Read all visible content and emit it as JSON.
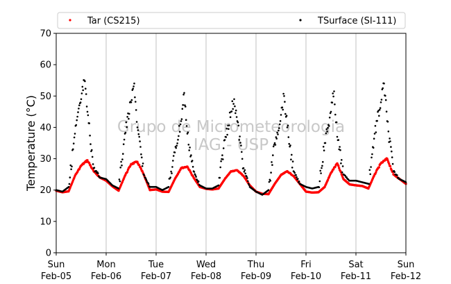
{
  "chart_data": {
    "type": "scatter",
    "title": "",
    "xlabel": "",
    "ylabel": "Temperature (°C)",
    "ylim": [
      0,
      70
    ],
    "yticks": [
      0,
      10,
      20,
      30,
      40,
      50,
      60,
      70
    ],
    "xlim": [
      "2023-02-05T00:00",
      "2023-02-12T00:00"
    ],
    "xticks": [
      {
        "day": "Sun",
        "date": "Feb-05"
      },
      {
        "day": "Mon",
        "date": "Feb-06"
      },
      {
        "day": "Tue",
        "date": "Feb-07"
      },
      {
        "day": "Wed",
        "date": "Feb-08"
      },
      {
        "day": "Thu",
        "date": "Feb-09"
      },
      {
        "day": "Fri",
        "date": "Feb-10"
      },
      {
        "day": "Sat",
        "date": "Feb-11"
      },
      {
        "day": "Sun",
        "date": "Feb-12"
      }
    ],
    "grid": "x",
    "legend_position": "top",
    "watermark": [
      "Grupo de Micrometeorologia",
      "IAG - USP"
    ],
    "series": [
      {
        "name": "Tar (CS215)",
        "color": "#ff0000",
        "points": [
          [
            "2023-02-05T00:00",
            19.8
          ],
          [
            "2023-02-05T03:00",
            19.3
          ],
          [
            "2023-02-05T06:00",
            19.6
          ],
          [
            "2023-02-05T09:00",
            24.5
          ],
          [
            "2023-02-05T12:00",
            27.8
          ],
          [
            "2023-02-05T15:00",
            29.5
          ],
          [
            "2023-02-05T18:00",
            26.0
          ],
          [
            "2023-02-05T21:00",
            24.0
          ],
          [
            "2023-02-06T00:00",
            23.0
          ],
          [
            "2023-02-06T03:00",
            21.2
          ],
          [
            "2023-02-06T06:00",
            19.8
          ],
          [
            "2023-02-06T09:00",
            24.5
          ],
          [
            "2023-02-06T12:00",
            28.3
          ],
          [
            "2023-02-06T15:00",
            29.0
          ],
          [
            "2023-02-06T18:00",
            25.0
          ],
          [
            "2023-02-06T21:00",
            20.0
          ],
          [
            "2023-02-07T00:00",
            20.2
          ],
          [
            "2023-02-07T03:00",
            19.5
          ],
          [
            "2023-02-07T06:00",
            19.4
          ],
          [
            "2023-02-07T09:00",
            23.5
          ],
          [
            "2023-02-07T12:00",
            27.0
          ],
          [
            "2023-02-07T15:00",
            27.5
          ],
          [
            "2023-02-07T18:00",
            24.0
          ],
          [
            "2023-02-07T21:00",
            21.0
          ],
          [
            "2023-02-08T00:00",
            20.4
          ],
          [
            "2023-02-08T03:00",
            20.2
          ],
          [
            "2023-02-08T06:00",
            20.5
          ],
          [
            "2023-02-08T09:00",
            23.5
          ],
          [
            "2023-02-08T12:00",
            26.0
          ],
          [
            "2023-02-08T15:00",
            26.3
          ],
          [
            "2023-02-08T18:00",
            24.5
          ],
          [
            "2023-02-08T21:00",
            21.5
          ],
          [
            "2023-02-09T00:00",
            19.5
          ],
          [
            "2023-02-09T03:00",
            18.8
          ],
          [
            "2023-02-09T06:00",
            18.7
          ],
          [
            "2023-02-09T09:00",
            22.0
          ],
          [
            "2023-02-09T12:00",
            24.8
          ],
          [
            "2023-02-09T15:00",
            26.0
          ],
          [
            "2023-02-09T18:00",
            24.5
          ],
          [
            "2023-02-09T21:00",
            22.0
          ],
          [
            "2023-02-10T00:00",
            19.5
          ],
          [
            "2023-02-10T03:00",
            19.2
          ],
          [
            "2023-02-10T06:00",
            19.3
          ],
          [
            "2023-02-10T09:00",
            21.0
          ],
          [
            "2023-02-10T12:00",
            25.5
          ],
          [
            "2023-02-10T15:00",
            28.5
          ],
          [
            "2023-02-10T18:00",
            23.5
          ],
          [
            "2023-02-10T21:00",
            21.8
          ],
          [
            "2023-02-11T00:00",
            21.5
          ],
          [
            "2023-02-11T03:00",
            21.3
          ],
          [
            "2023-02-11T06:00",
            20.5
          ],
          [
            "2023-02-11T09:00",
            25.0
          ],
          [
            "2023-02-11T12:00",
            28.5
          ],
          [
            "2023-02-11T15:00",
            30.0
          ],
          [
            "2023-02-11T18:00",
            25.0
          ],
          [
            "2023-02-11T21:00",
            23.5
          ],
          [
            "2023-02-12T00:00",
            22.0
          ]
        ]
      },
      {
        "name": "TSurface (SI-111)",
        "color": "#000000",
        "points": [
          [
            "2023-02-05T00:00",
            20.0
          ],
          [
            "2023-02-05T03:00",
            19.5
          ],
          [
            "2023-02-05T06:00",
            21.0
          ],
          [
            "2023-02-05T09:00",
            38.0
          ],
          [
            "2023-02-05T12:00",
            49.0
          ],
          [
            "2023-02-05T13:30",
            55.0
          ],
          [
            "2023-02-05T15:00",
            45.0
          ],
          [
            "2023-02-05T18:00",
            27.0
          ],
          [
            "2023-02-05T21:00",
            24.0
          ],
          [
            "2023-02-06T00:00",
            23.5
          ],
          [
            "2023-02-06T03:00",
            21.5
          ],
          [
            "2023-02-06T06:00",
            20.5
          ],
          [
            "2023-02-06T09:00",
            38.0
          ],
          [
            "2023-02-06T12:00",
            48.0
          ],
          [
            "2023-02-06T13:30",
            54.0
          ],
          [
            "2023-02-06T15:00",
            40.0
          ],
          [
            "2023-02-06T18:00",
            25.0
          ],
          [
            "2023-02-06T21:00",
            21.0
          ],
          [
            "2023-02-07T00:00",
            21.0
          ],
          [
            "2023-02-07T03:00",
            20.0
          ],
          [
            "2023-02-07T06:00",
            21.0
          ],
          [
            "2023-02-07T09:00",
            32.0
          ],
          [
            "2023-02-07T12:00",
            42.0
          ],
          [
            "2023-02-07T13:30",
            51.0
          ],
          [
            "2023-02-07T15:00",
            38.0
          ],
          [
            "2023-02-07T18:00",
            26.0
          ],
          [
            "2023-02-07T21:00",
            21.5
          ],
          [
            "2023-02-08T00:00",
            20.5
          ],
          [
            "2023-02-08T03:00",
            20.5
          ],
          [
            "2023-02-08T06:00",
            21.5
          ],
          [
            "2023-02-08T09:00",
            36.0
          ],
          [
            "2023-02-08T12:00",
            45.0
          ],
          [
            "2023-02-08T13:30",
            49.0
          ],
          [
            "2023-02-08T15:00",
            42.0
          ],
          [
            "2023-02-08T18:00",
            27.0
          ],
          [
            "2023-02-08T21:00",
            21.0
          ],
          [
            "2023-02-09T00:00",
            19.5
          ],
          [
            "2023-02-09T03:00",
            18.5
          ],
          [
            "2023-02-09T06:00",
            20.0
          ],
          [
            "2023-02-09T09:00",
            35.0
          ],
          [
            "2023-02-09T12:00",
            44.0
          ],
          [
            "2023-02-09T13:30",
            50.0
          ],
          [
            "2023-02-09T15:00",
            40.0
          ],
          [
            "2023-02-09T18:00",
            26.0
          ],
          [
            "2023-02-09T21:00",
            22.0
          ],
          [
            "2023-02-10T00:00",
            21.0
          ],
          [
            "2023-02-10T03:00",
            20.5
          ],
          [
            "2023-02-10T06:00",
            21.0
          ],
          [
            "2023-02-10T09:00",
            35.0
          ],
          [
            "2023-02-10T12:00",
            45.0
          ],
          [
            "2023-02-10T13:30",
            51.5
          ],
          [
            "2023-02-10T15:00",
            37.0
          ],
          [
            "2023-02-10T18:00",
            25.0
          ],
          [
            "2023-02-10T21:00",
            23.0
          ],
          [
            "2023-02-11T00:00",
            23.0
          ],
          [
            "2023-02-11T03:00",
            22.5
          ],
          [
            "2023-02-11T06:00",
            22.0
          ],
          [
            "2023-02-11T09:00",
            38.0
          ],
          [
            "2023-02-11T12:00",
            48.0
          ],
          [
            "2023-02-11T13:30",
            54.0
          ],
          [
            "2023-02-11T15:00",
            42.0
          ],
          [
            "2023-02-11T18:00",
            26.0
          ],
          [
            "2023-02-11T21:00",
            23.5
          ],
          [
            "2023-02-12T00:00",
            22.5
          ]
        ]
      }
    ]
  }
}
